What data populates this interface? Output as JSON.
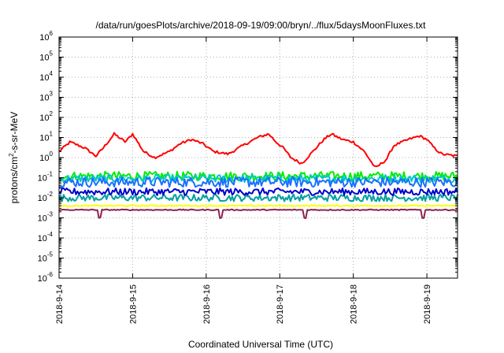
{
  "chart_data": {
    "type": "line",
    "title": "/data/run/goesPlots/archive/2018-09-19/09:00/bryn/../flux/5daysMoonFluxes.txt",
    "xlabel": "Coordinated Universal Time (UTC)",
    "ylabel": "protons/cm2-s-sr-MeV",
    "ylabel_parts": {
      "pre": "protons/cm",
      "sup": "2",
      "post": "-s-sr-MeV"
    },
    "y_scale": "log",
    "ylim": [
      1e-06,
      1000000.0
    ],
    "y_ticks": [
      {
        "base": "10",
        "exp": "-6",
        "value": 1e-06
      },
      {
        "base": "10",
        "exp": "-5",
        "value": 1e-05
      },
      {
        "base": "10",
        "exp": "-4",
        "value": 0.0001
      },
      {
        "base": "10",
        "exp": "-3",
        "value": 0.001
      },
      {
        "base": "10",
        "exp": "-2",
        "value": 0.01
      },
      {
        "base": "10",
        "exp": "-1",
        "value": 0.1
      },
      {
        "base": "10",
        "exp": "0",
        "value": 1
      },
      {
        "base": "10",
        "exp": "1",
        "value": 10
      },
      {
        "base": "10",
        "exp": "2",
        "value": 100
      },
      {
        "base": "10",
        "exp": "3",
        "value": 1000
      },
      {
        "base": "10",
        "exp": "4",
        "value": 10000
      },
      {
        "base": "10",
        "exp": "5",
        "value": 100000
      },
      {
        "base": "10",
        "exp": "6",
        "value": 1000000
      }
    ],
    "x_ticks": [
      "2018-9-14",
      "2018-9-15",
      "2018-9-16",
      "2018-9-17",
      "2018-9-18",
      "2018-9-19"
    ],
    "xlim": [
      "2018-09-14T00:00",
      "2018-09-19T10:00"
    ],
    "grid": true,
    "series": [
      {
        "color": "#ff0000",
        "base": [
          [
            0,
            2
          ],
          [
            0.15,
            6
          ],
          [
            0.35,
            3
          ],
          [
            0.5,
            1.2
          ],
          [
            0.6,
            3
          ],
          [
            0.75,
            15
          ],
          [
            0.9,
            6
          ],
          [
            1.0,
            15
          ],
          [
            1.15,
            2
          ],
          [
            1.3,
            1
          ],
          [
            1.5,
            2
          ],
          [
            1.65,
            5
          ],
          [
            1.8,
            8
          ],
          [
            1.95,
            5
          ],
          [
            2.1,
            2
          ],
          [
            2.3,
            1.5
          ],
          [
            2.5,
            4
          ],
          [
            2.7,
            10
          ],
          [
            2.85,
            15
          ],
          [
            2.95,
            6
          ],
          [
            3.05,
            3
          ],
          [
            3.15,
            1
          ],
          [
            3.3,
            0.5
          ],
          [
            3.45,
            2
          ],
          [
            3.6,
            8
          ],
          [
            3.7,
            15
          ],
          [
            3.85,
            8
          ],
          [
            4.0,
            6
          ],
          [
            4.15,
            2
          ],
          [
            4.3,
            0.3
          ],
          [
            4.45,
            0.8
          ],
          [
            4.55,
            4
          ],
          [
            4.75,
            8
          ],
          [
            4.9,
            12
          ],
          [
            5.0,
            8
          ],
          [
            5.1,
            3
          ],
          [
            5.2,
            1.5
          ],
          [
            5.4,
            1.2
          ]
        ],
        "noise": 0.12
      },
      {
        "color": "#00ee00",
        "base": [
          [
            0,
            0.12
          ],
          [
            1.0,
            0.12
          ],
          [
            2.0,
            0.12
          ],
          [
            3.0,
            0.12
          ],
          [
            4.0,
            0.12
          ],
          [
            5.4,
            0.12
          ]
        ],
        "noise": 0.45
      },
      {
        "color": "#00c8c8",
        "base": [
          [
            0,
            0.09
          ],
          [
            2.7,
            0.09
          ],
          [
            5.4,
            0.09
          ]
        ],
        "noise": 0.4
      },
      {
        "color": "#1a70ff",
        "base": [
          [
            0,
            0.06
          ],
          [
            2.7,
            0.06
          ],
          [
            5.4,
            0.06
          ]
        ],
        "noise": 0.5
      },
      {
        "color": "#00a0a0",
        "base": [
          [
            0,
            0.01
          ],
          [
            2.7,
            0.01
          ],
          [
            5.4,
            0.01
          ]
        ],
        "noise": 0.35
      },
      {
        "color": "#0000cc",
        "base": [
          [
            0,
            0.02
          ],
          [
            2.7,
            0.02
          ],
          [
            5.4,
            0.02
          ]
        ],
        "noise": 0.35
      },
      {
        "color": "#ffff00",
        "base": [
          [
            0,
            0.004
          ],
          [
            2.7,
            0.004
          ],
          [
            5.4,
            0.004
          ]
        ],
        "noise": 0.05
      },
      {
        "color": "#8b2252",
        "base": [
          [
            0,
            0.0025
          ],
          [
            2.7,
            0.0025
          ],
          [
            5.4,
            0.0025
          ]
        ],
        "noise": 0.05,
        "dips": [
          0.55,
          2.2,
          3.35,
          4.95
        ]
      }
    ]
  }
}
